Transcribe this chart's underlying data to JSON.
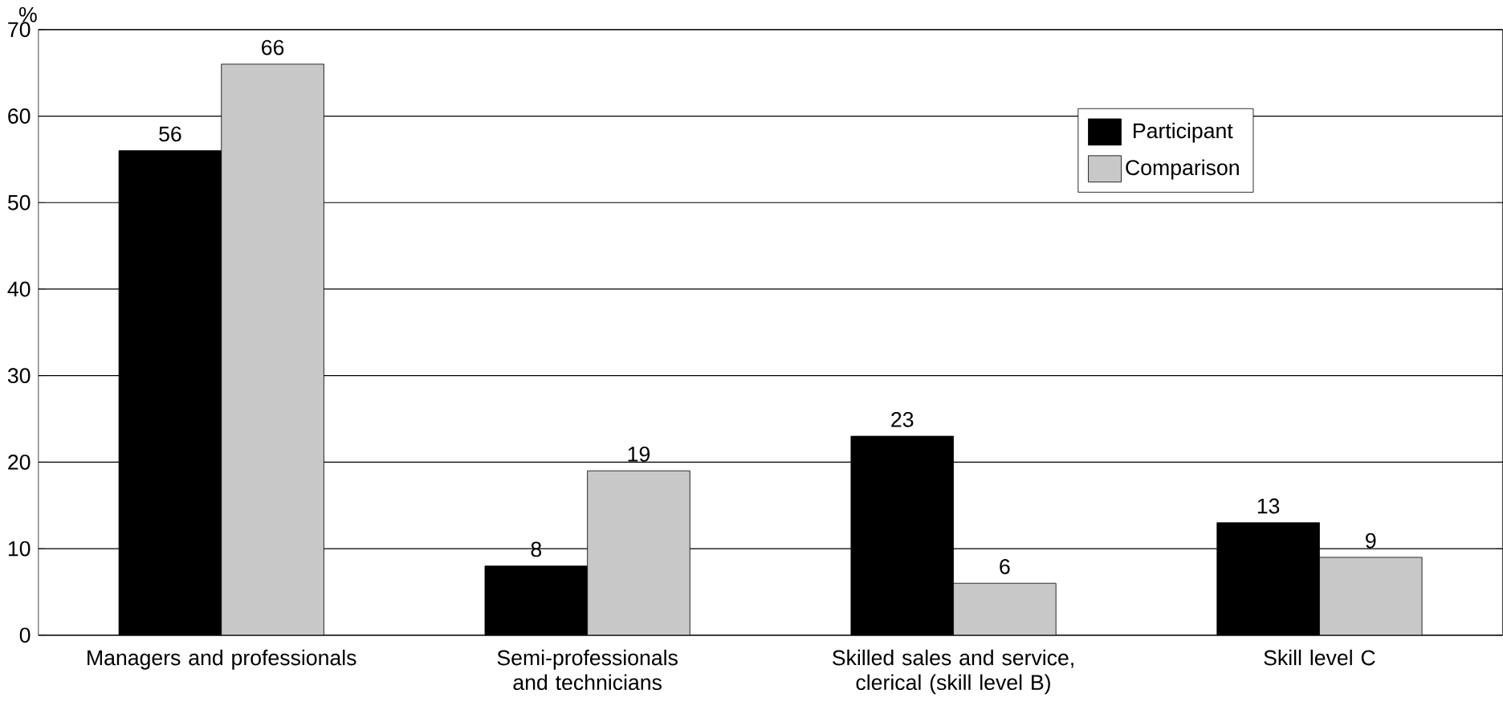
{
  "chart_data": {
    "type": "bar",
    "ylabel": "%",
    "categories": [
      "Managers and professionals",
      "Semi-professionals and technicians",
      "Skilled sales and service, clerical (skill level B)",
      "Skill level C"
    ],
    "series": [
      {
        "name": "Participant",
        "color": "#000000",
        "values": [
          56,
          8,
          23,
          13
        ]
      },
      {
        "name": "Comparison",
        "color": "#c8c8c8",
        "values": [
          66,
          19,
          6,
          9
        ]
      }
    ],
    "ylim": [
      0,
      70
    ],
    "yticks": [
      0,
      10,
      20,
      30,
      40,
      50,
      60,
      70
    ],
    "grid": "y",
    "legend": "top right",
    "data_labels": true
  }
}
